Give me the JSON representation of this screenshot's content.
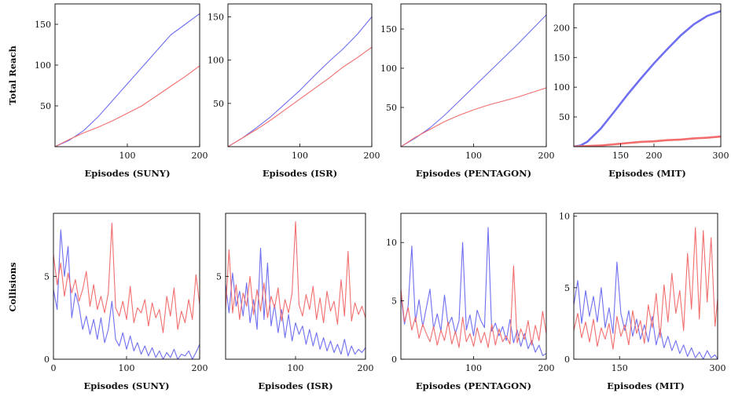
{
  "colors": {
    "blue": "#6f6ff2",
    "red": "#f26e6e",
    "frame": "#000000"
  },
  "rows": [
    {
      "ylabel": "Total Reach"
    },
    {
      "ylabel": "Collisions"
    }
  ],
  "chart_data": [
    {
      "type": "line",
      "id": "reach-suny",
      "xlabel": "Episodes (SUNY)",
      "xlim": [
        0,
        200
      ],
      "ylim": [
        0,
        175
      ],
      "xticks": [
        100,
        200
      ],
      "yticks": [
        50,
        100,
        150
      ],
      "series": [
        {
          "color": "blue",
          "x": [
            0,
            20,
            40,
            60,
            80,
            100,
            120,
            140,
            160,
            180,
            200
          ],
          "y": [
            0,
            8,
            20,
            37,
            57,
            77,
            97,
            117,
            137,
            150,
            163
          ]
        },
        {
          "color": "red",
          "x": [
            0,
            20,
            40,
            60,
            80,
            100,
            120,
            140,
            160,
            180,
            200
          ],
          "y": [
            0,
            9,
            17,
            24,
            32,
            41,
            50,
            62,
            74,
            86,
            99
          ]
        }
      ]
    },
    {
      "type": "line",
      "id": "reach-isr",
      "xlabel": "Episodes (ISR)",
      "xlim": [
        0,
        200
      ],
      "ylim": [
        0,
        165
      ],
      "xticks": [
        100,
        200
      ],
      "yticks": [
        50,
        100,
        150
      ],
      "series": [
        {
          "color": "blue",
          "x": [
            0,
            20,
            40,
            60,
            80,
            100,
            120,
            140,
            160,
            180,
            200
          ],
          "y": [
            0,
            10,
            22,
            35,
            50,
            65,
            82,
            98,
            113,
            130,
            150
          ]
        },
        {
          "color": "red",
          "x": [
            0,
            20,
            40,
            60,
            80,
            100,
            120,
            140,
            160,
            180,
            200
          ],
          "y": [
            0,
            10,
            20,
            31,
            43,
            55,
            67,
            79,
            92,
            103,
            115
          ]
        }
      ]
    },
    {
      "type": "line",
      "id": "reach-pentagon",
      "xlabel": "Episodes (PENTAGON)",
      "xlim": [
        0,
        200
      ],
      "ylim": [
        0,
        182
      ],
      "xticks": [
        100,
        200
      ],
      "yticks": [
        50,
        100,
        150
      ],
      "series": [
        {
          "color": "blue",
          "x": [
            0,
            20,
            40,
            60,
            80,
            100,
            120,
            140,
            160,
            180,
            200
          ],
          "y": [
            0,
            11,
            24,
            40,
            58,
            76,
            94,
            112,
            130,
            149,
            168
          ]
        },
        {
          "color": "red",
          "x": [
            0,
            20,
            40,
            60,
            80,
            100,
            120,
            140,
            160,
            180,
            200
          ],
          "y": [
            0,
            12,
            22,
            32,
            40,
            47,
            53,
            58,
            63,
            69,
            75
          ]
        }
      ]
    },
    {
      "type": "line",
      "id": "reach-mit",
      "xlabel": "Episodes (MIT)",
      "xlim": [
        80,
        300
      ],
      "ylim": [
        0,
        240
      ],
      "xticks": [
        150,
        200,
        300
      ],
      "yticks": [
        50,
        100,
        150,
        200
      ],
      "series": [
        {
          "color": "blue",
          "x": [
            80,
            90,
            100,
            120,
            140,
            160,
            180,
            200,
            220,
            240,
            260,
            280,
            300
          ],
          "y": [
            0,
            2,
            8,
            30,
            58,
            87,
            114,
            140,
            164,
            187,
            206,
            220,
            228
          ]
        },
        {
          "color": "red",
          "x": [
            80,
            100,
            120,
            140,
            160,
            180,
            200,
            220,
            240,
            260,
            280,
            300
          ],
          "y": [
            0,
            1,
            2,
            4,
            6,
            8,
            9,
            11,
            12,
            14,
            15,
            17
          ]
        }
      ]
    },
    {
      "type": "line",
      "id": "coll-suny",
      "xlabel": "Episodes (SUNY)",
      "xlim": [
        0,
        200
      ],
      "ylim": [
        0,
        8.8
      ],
      "xticks": [
        0,
        100,
        200
      ],
      "yticks": [
        0,
        5
      ],
      "series": [
        {
          "color": "blue",
          "x": [
            0,
            5,
            10,
            15,
            20,
            25,
            30,
            35,
            40,
            45,
            50,
            55,
            60,
            65,
            70,
            75,
            80,
            85,
            90,
            95,
            100,
            105,
            110,
            115,
            120,
            125,
            130,
            135,
            140,
            145,
            150,
            155,
            160,
            165,
            170,
            175,
            180,
            185,
            190,
            195,
            200
          ],
          "y": [
            4.2,
            3.0,
            7.8,
            5.0,
            6.8,
            2.5,
            4.0,
            3.2,
            1.8,
            2.6,
            1.5,
            2.4,
            1.2,
            2.5,
            1.0,
            1.8,
            3.5,
            1.2,
            0.8,
            1.6,
            0.6,
            1.4,
            0.5,
            1.0,
            0.3,
            0.8,
            0.2,
            0.7,
            0.1,
            0.5,
            0.0,
            0.4,
            0.1,
            0.6,
            0.0,
            0.3,
            0.2,
            0.5,
            0.0,
            0.4,
            0.9
          ]
        },
        {
          "color": "red",
          "x": [
            0,
            5,
            10,
            15,
            20,
            25,
            30,
            35,
            40,
            45,
            50,
            55,
            60,
            65,
            70,
            75,
            80,
            85,
            90,
            95,
            100,
            105,
            110,
            115,
            120,
            125,
            130,
            135,
            140,
            145,
            150,
            155,
            160,
            165,
            170,
            175,
            180,
            185,
            190,
            195,
            200
          ],
          "y": [
            6.3,
            4.5,
            5.8,
            3.8,
            5.2,
            4.0,
            4.8,
            3.5,
            4.2,
            5.3,
            3.2,
            4.5,
            3.0,
            3.8,
            2.8,
            4.0,
            8.2,
            3.1,
            2.6,
            3.5,
            2.4,
            4.4,
            2.2,
            3.1,
            2.8,
            3.6,
            2.0,
            3.4,
            2.5,
            3.0,
            1.6,
            3.8,
            2.6,
            4.3,
            1.8,
            2.9,
            2.2,
            3.6,
            2.4,
            5.1,
            3.3
          ]
        }
      ]
    },
    {
      "type": "line",
      "id": "coll-isr",
      "xlabel": "Episodes (ISR)",
      "xlim": [
        0,
        200
      ],
      "ylim": [
        0,
        8.8
      ],
      "xticks": [
        100,
        200
      ],
      "yticks": [
        5
      ],
      "series": [
        {
          "color": "blue",
          "x": [
            0,
            5,
            10,
            15,
            20,
            25,
            30,
            35,
            40,
            45,
            50,
            55,
            60,
            65,
            70,
            75,
            80,
            85,
            90,
            95,
            100,
            105,
            110,
            115,
            120,
            125,
            130,
            135,
            140,
            145,
            150,
            155,
            160,
            165,
            170,
            175,
            180,
            185,
            190,
            195,
            200
          ],
          "y": [
            4.5,
            2.8,
            5.2,
            3.2,
            4.1,
            2.6,
            4.6,
            2.2,
            3.6,
            1.8,
            6.7,
            2.4,
            5.8,
            2.0,
            3.3,
            1.6,
            3.0,
            1.3,
            2.7,
            1.1,
            2.2,
            1.5,
            2.0,
            0.9,
            1.8,
            0.8,
            1.6,
            0.6,
            1.3,
            0.5,
            1.1,
            0.4,
            0.9,
            0.3,
            1.2,
            0.2,
            0.8,
            0.3,
            0.6,
            0.4,
            0.7
          ]
        },
        {
          "color": "red",
          "x": [
            0,
            5,
            10,
            15,
            20,
            25,
            30,
            35,
            40,
            45,
            50,
            55,
            60,
            65,
            70,
            75,
            80,
            85,
            90,
            95,
            100,
            105,
            110,
            115,
            120,
            125,
            130,
            135,
            140,
            145,
            150,
            155,
            160,
            165,
            170,
            175,
            180,
            185,
            190,
            195,
            200
          ],
          "y": [
            3.0,
            6.6,
            2.8,
            4.5,
            2.4,
            4.0,
            3.2,
            5.0,
            2.7,
            4.2,
            2.9,
            4.6,
            2.5,
            3.8,
            3.1,
            4.3,
            2.3,
            3.6,
            2.8,
            4.0,
            8.3,
            3.3,
            2.6,
            3.9,
            3.0,
            4.4,
            2.4,
            3.7,
            2.2,
            4.1,
            2.9,
            3.5,
            2.1,
            4.8,
            2.6,
            6.5,
            2.3,
            3.4,
            2.7,
            3.2,
            2.5
          ]
        }
      ]
    },
    {
      "type": "line",
      "id": "coll-pentagon",
      "xlabel": "Episodes (PENTAGON)",
      "xlim": [
        0,
        200
      ],
      "ylim": [
        0,
        12.5
      ],
      "xticks": [
        100,
        200
      ],
      "yticks": [
        0,
        5,
        10
      ],
      "series": [
        {
          "color": "blue",
          "x": [
            0,
            5,
            10,
            15,
            20,
            25,
            30,
            35,
            40,
            45,
            50,
            55,
            60,
            65,
            70,
            75,
            80,
            85,
            90,
            95,
            100,
            105,
            110,
            115,
            120,
            125,
            130,
            135,
            140,
            145,
            150,
            155,
            160,
            165,
            170,
            175,
            180,
            185,
            190,
            195,
            200
          ],
          "y": [
            5.5,
            3.0,
            4.6,
            9.7,
            3.2,
            5.1,
            2.8,
            4.4,
            6.0,
            2.6,
            3.9,
            2.4,
            5.5,
            2.9,
            3.6,
            2.2,
            3.3,
            10.0,
            2.5,
            3.8,
            2.0,
            4.2,
            3.3,
            2.7,
            11.3,
            2.4,
            3.1,
            2.0,
            2.8,
            1.6,
            3.4,
            1.4,
            2.5,
            1.1,
            2.2,
            0.9,
            1.6,
            0.6,
            1.2,
            0.3,
            0.5
          ]
        },
        {
          "color": "red",
          "x": [
            0,
            5,
            10,
            15,
            20,
            25,
            30,
            35,
            40,
            45,
            50,
            55,
            60,
            65,
            70,
            75,
            80,
            85,
            90,
            95,
            100,
            105,
            110,
            115,
            120,
            125,
            130,
            135,
            140,
            145,
            150,
            155,
            160,
            165,
            170,
            175,
            180,
            185,
            190,
            195,
            200
          ],
          "y": [
            6.0,
            3.2,
            4.4,
            2.5,
            3.6,
            1.8,
            3.0,
            2.2,
            1.5,
            2.8,
            1.2,
            2.5,
            1.6,
            3.2,
            1.3,
            2.4,
            1.0,
            3.6,
            1.5,
            2.2,
            1.1,
            2.7,
            1.4,
            2.3,
            1.0,
            3.0,
            1.2,
            2.6,
            1.5,
            2.0,
            1.3,
            8.0,
            1.4,
            2.6,
            1.7,
            3.3,
            1.2,
            2.9,
            1.6,
            4.1,
            2.2
          ]
        }
      ]
    },
    {
      "type": "line",
      "id": "coll-mit",
      "xlabel": "Episodes (MIT)",
      "xlim": [
        80,
        300
      ],
      "ylim": [
        0,
        10.2
      ],
      "xticks": [
        150,
        300
      ],
      "yticks": [
        0,
        5,
        10
      ],
      "series": [
        {
          "color": "blue",
          "x": [
            80,
            86,
            92,
            98,
            104,
            110,
            116,
            122,
            128,
            134,
            140,
            146,
            152,
            158,
            164,
            170,
            176,
            182,
            188,
            194,
            200,
            206,
            212,
            218,
            224,
            230,
            236,
            242,
            248,
            254,
            260,
            266,
            272,
            278,
            284,
            290,
            296,
            300
          ],
          "y": [
            3.8,
            5.5,
            2.5,
            4.8,
            3.0,
            4.4,
            2.6,
            5.0,
            2.2,
            3.6,
            1.8,
            6.8,
            3.2,
            2.0,
            3.4,
            1.6,
            2.8,
            1.4,
            2.4,
            1.2,
            3.0,
            1.0,
            2.1,
            0.8,
            1.6,
            0.6,
            1.3,
            0.4,
            1.0,
            0.2,
            0.8,
            0.1,
            0.5,
            0.0,
            0.6,
            0.1,
            0.3,
            0.0
          ]
        },
        {
          "color": "red",
          "x": [
            80,
            86,
            92,
            98,
            104,
            110,
            116,
            122,
            128,
            134,
            140,
            146,
            152,
            158,
            164,
            170,
            176,
            182,
            188,
            194,
            200,
            206,
            212,
            218,
            224,
            230,
            236,
            242,
            248,
            254,
            260,
            266,
            272,
            278,
            284,
            290,
            296,
            300
          ],
          "y": [
            2.0,
            3.2,
            1.5,
            2.6,
            1.2,
            2.8,
            0.9,
            2.2,
            1.4,
            2.5,
            0.7,
            3.0,
            1.6,
            2.4,
            1.0,
            3.4,
            1.8,
            2.7,
            1.1,
            3.8,
            2.2,
            4.6,
            1.5,
            5.2,
            2.6,
            6.0,
            3.2,
            4.8,
            2.0,
            7.4,
            3.5,
            9.2,
            2.8,
            9.0,
            4.0,
            8.5,
            2.3,
            4.2
          ]
        }
      ]
    }
  ]
}
